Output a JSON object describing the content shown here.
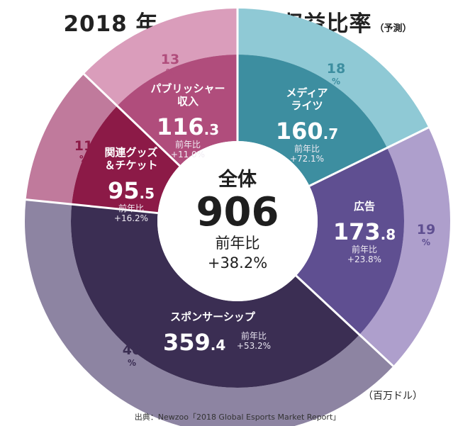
{
  "title": "2018 年 e スポーツ収益比率",
  "subtitle": "（予測）",
  "unit": "（百万ドル）",
  "source": "出典：Newzoo「2018 Global Esports Market Report」",
  "chart_data": {
    "type": "pie",
    "total": {
      "label": "全体",
      "value": "906",
      "yoy_label": "前年比",
      "yoy": "+38.2%"
    },
    "segments": [
      {
        "label": [
          "メディア",
          "ライツ"
        ],
        "value": 160.7,
        "int": "160",
        "dec": ".7",
        "yoy_label": "前年比",
        "yoy": "+72.1%",
        "pct": "18",
        "pct_unit": "%",
        "inner_color": "#3d8ea0",
        "outer_color": "#8fc9d5"
      },
      {
        "label": [
          "広告"
        ],
        "value": 173.8,
        "int": "173",
        "dec": ".8",
        "yoy_label": "前年比",
        "yoy": "+23.8%",
        "pct": "19",
        "pct_unit": "%",
        "inner_color": "#5f4f91",
        "outer_color": "#ae9fcc"
      },
      {
        "label": [
          "スポンサーシップ"
        ],
        "value": 359.4,
        "int": "359",
        "dec": ".4",
        "yoy_label": "前年比",
        "yoy": "+53.2%",
        "pct": "40",
        "pct_unit": "%",
        "inner_color": "#3b2e53",
        "outer_color": "#8d84a2"
      },
      {
        "label": [
          "関連グッズ",
          "＆チケット"
        ],
        "value": 95.5,
        "int": "95",
        "dec": ".5",
        "yoy_label": "前年比",
        "yoy": "+16.2%",
        "pct": "11",
        "pct_unit": "%",
        "inner_color": "#8c1a47",
        "outer_color": "#c07a9c"
      },
      {
        "label": [
          "パブリッシャー",
          "収入"
        ],
        "value": 116.3,
        "int": "116",
        "dec": ".3",
        "yoy_label": "前年比",
        "yoy": "+11.0%",
        "pct": "13",
        "pct_unit": "%",
        "inner_color": "#b04d7c",
        "outer_color": "#da9dbb"
      }
    ]
  }
}
